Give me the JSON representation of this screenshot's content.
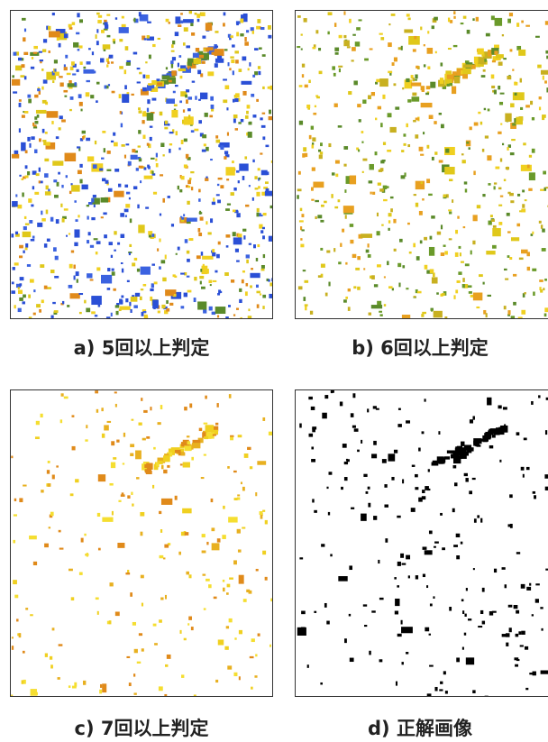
{
  "panels": [
    {
      "caption": "a) 5回以上判定"
    },
    {
      "caption": "b) 6回以上判定"
    },
    {
      "caption": "c) 7回以上判定"
    },
    {
      "caption": "d) 正解画像"
    }
  ]
}
